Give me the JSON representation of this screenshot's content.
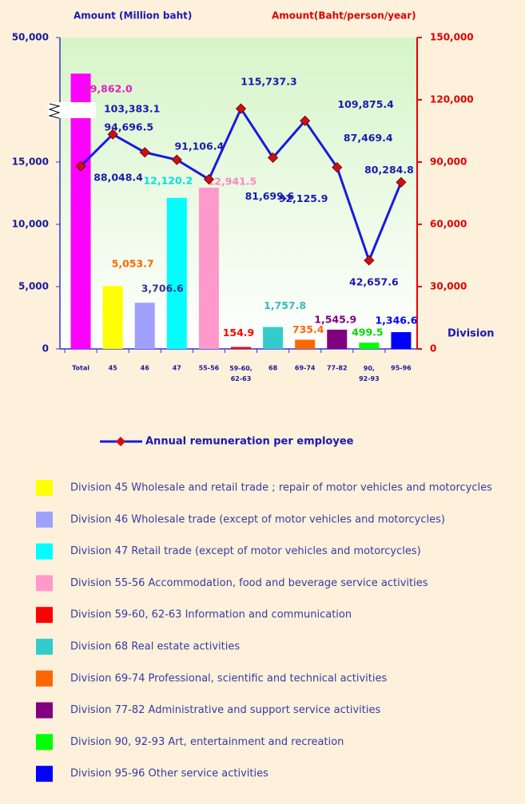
{
  "chart_data": {
    "type": "bar_line",
    "y_label": "Amount  (Million baht)",
    "y2_label": "Amount(Baht/person/year)",
    "x_label": "Division",
    "categories": [
      "Total",
      "45",
      "46",
      "47",
      "55-56",
      "59-60,\n62-63",
      "68",
      "69-74",
      "77-82",
      "90,\n92-93",
      "95-96"
    ],
    "series": [
      {
        "type": "bar",
        "axis": "y",
        "colors": [
          "#ff00ff",
          "#ffff00",
          "#a0a0ff",
          "#00ffff",
          "#ff99cc",
          "#ff0000",
          "#33cccc",
          "#ff6600",
          "#800080",
          "#00ff00",
          "#0000ff"
        ],
        "label_colors": [
          "#e020c0",
          "#ff6600",
          "#333399",
          "#00e0e0",
          "#ff88bb",
          "#ff0000",
          "#33bbbb",
          "#ff6600",
          "#800080",
          "#00dd00",
          "#0000ff"
        ],
        "values": [
          39862.0,
          5053.7,
          3706.6,
          12120.2,
          12941.5,
          154.9,
          1757.8,
          735.4,
          1545.9,
          499.5,
          1346.6
        ],
        "value_labels": [
          "39,862.0",
          "5,053.7",
          "3,706.6",
          "12,120.2",
          "12,941.5",
          "154.9",
          "1,757.8",
          "735.4",
          "1,545.9",
          "499.5",
          "1,346.6"
        ]
      },
      {
        "type": "line",
        "axis": "y2",
        "name": "Annual remuneration per employee",
        "color": "#1a1ae0",
        "marker_color": "#cc1010",
        "values": [
          88048.4,
          103383.1,
          94696.5,
          91106.4,
          81699.6,
          115737.3,
          92125.9,
          109875.4,
          87469.4,
          42657.6,
          80284.8
        ],
        "value_labels": [
          "88,048.4",
          "103,383.1",
          "94,696.5",
          "91,106.4",
          "81,699.6",
          "115,737.3",
          "92,125.9",
          "109,875.4",
          "87,469.4",
          "42,657.6",
          "80,284.8"
        ]
      }
    ],
    "ylim": [
      0,
      50000
    ],
    "yticks": [
      0,
      {
        "value": 5000,
        "label": "5,000"
      },
      {
        "value": 10000,
        "label": "10,000"
      },
      {
        "value": 15000,
        "label": "15,000"
      },
      {
        "value": 50000,
        "label": "50,000"
      }
    ],
    "y2lim": [
      0,
      150000
    ],
    "y2ticks": [
      0,
      {
        "value": 30000,
        "label": "30,000"
      },
      {
        "value": 60000,
        "label": "60,000"
      },
      {
        "value": 90000,
        "label": "90,000"
      },
      {
        "value": 120000,
        "label": "120,000"
      },
      {
        "value": 150000,
        "label": "150,000"
      }
    ],
    "legend_labels": [
      "Division 45 Wholesale and retail trade ; repair of motor vehicles and  motorcycles",
      "Division 46 Wholesale trade (except of motor vehicles and motorcycles)",
      "Division 47 Retail trade (except of motor vehicles and motorcycles)",
      "Division 55-56 Accommodation,  food and beverage service activities",
      "Division 59-60, 62-63 Information and communication",
      "Division 68 Real estate activities",
      "Division 69-74 Professional, scientific and technical activities",
      "Division 77-82 Administrative and support service activities",
      "Division 90, 92-93 Art, entertainment and recreation",
      "Division 95-96 Other service activities"
    ]
  }
}
